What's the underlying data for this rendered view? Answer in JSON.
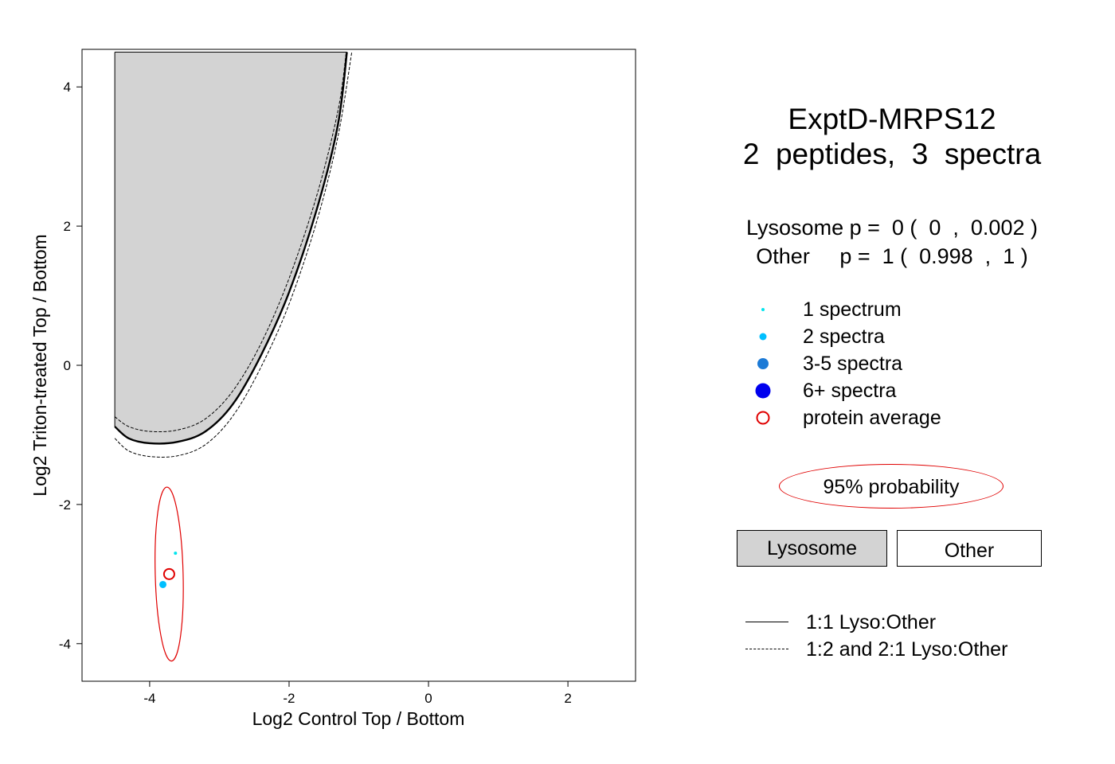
{
  "chart_data": {
    "type": "scatter",
    "xlabel": "Log2 Control Top / Bottom",
    "ylabel": "Log2 Triton-treated Top / Bottom",
    "xlim": [
      -4.97,
      2.97
    ],
    "ylim": [
      -4.54,
      4.54
    ],
    "x_ticks": [
      -4,
      -2,
      0,
      2
    ],
    "y_ticks": [
      -4,
      -2,
      0,
      2,
      4
    ],
    "grid": false,
    "points": [
      {
        "x": -3.63,
        "y": -2.7,
        "spectra": 1,
        "color": "#00e5ee"
      },
      {
        "x": -3.81,
        "y": -3.15,
        "spectra": 2,
        "color": "#00bfff"
      }
    ],
    "protein_average": {
      "x": -3.72,
      "y": -3.0,
      "color": "#e00000"
    },
    "probability_ellipse": {
      "cx": -3.72,
      "cy": -3.0,
      "rx": 0.2,
      "ry": 1.25,
      "angle_deg": -1.5,
      "color": "#e00000"
    },
    "lysosome_region": {
      "color": "#d3d3d3",
      "x_left": -4.5,
      "x_top": -1.17,
      "y_top": 4.5,
      "curve": [
        [
          -4.5,
          -0.88
        ],
        [
          -4.3,
          -1.05
        ],
        [
          -4.0,
          -1.12
        ],
        [
          -3.6,
          -1.1
        ],
        [
          -3.2,
          -0.95
        ],
        [
          -2.8,
          -0.55
        ],
        [
          -2.4,
          0.15
        ],
        [
          -2.0,
          1.05
        ],
        [
          -1.6,
          2.25
        ],
        [
          -1.3,
          3.45
        ],
        [
          -1.17,
          4.5
        ]
      ]
    },
    "boundary_dashed_inner": [
      [
        -4.5,
        -0.74
      ],
      [
        -4.3,
        -0.88
      ],
      [
        -4.0,
        -0.95
      ],
      [
        -3.6,
        -0.93
      ],
      [
        -3.2,
        -0.77
      ],
      [
        -2.8,
        -0.36
      ],
      [
        -2.4,
        0.32
      ],
      [
        -2.0,
        1.25
      ],
      [
        -1.6,
        2.45
      ],
      [
        -1.3,
        3.65
      ],
      [
        -1.18,
        4.5
      ]
    ],
    "boundary_dashed_outer": [
      [
        -4.5,
        -1.05
      ],
      [
        -4.3,
        -1.23
      ],
      [
        -4.0,
        -1.31
      ],
      [
        -3.6,
        -1.3
      ],
      [
        -3.2,
        -1.14
      ],
      [
        -2.8,
        -0.72
      ],
      [
        -2.4,
        -0.02
      ],
      [
        -2.0,
        0.88
      ],
      [
        -1.6,
        2.08
      ],
      [
        -1.3,
        3.28
      ],
      [
        -1.1,
        4.5
      ]
    ]
  },
  "title": {
    "line1": "ExptD-MRPS12",
    "line2": "2  peptides,  3  spectra"
  },
  "pvalues": {
    "line1": "Lysosome p =  0 (  0  ,  0.002 )",
    "line2": "Other     p =  1 (  0.998  ,  1 )"
  },
  "legend": {
    "items": [
      {
        "label": "1 spectrum",
        "color": "#00e5ee"
      },
      {
        "label": "2 spectra",
        "color": "#00bfff"
      },
      {
        "label": "3-5 spectra",
        "color": "#1c7ad6"
      },
      {
        "label": "6+ spectra",
        "color": "#0000ee"
      },
      {
        "label": "protein average",
        "color": "#e00000"
      }
    ],
    "probability_label": "95% probability",
    "lysosome_label": "Lysosome",
    "other_label": "Other",
    "solid_line_label": "1:1 Lyso:Other",
    "dashed_line_label": "1:2 and 2:1 Lyso:Other"
  }
}
